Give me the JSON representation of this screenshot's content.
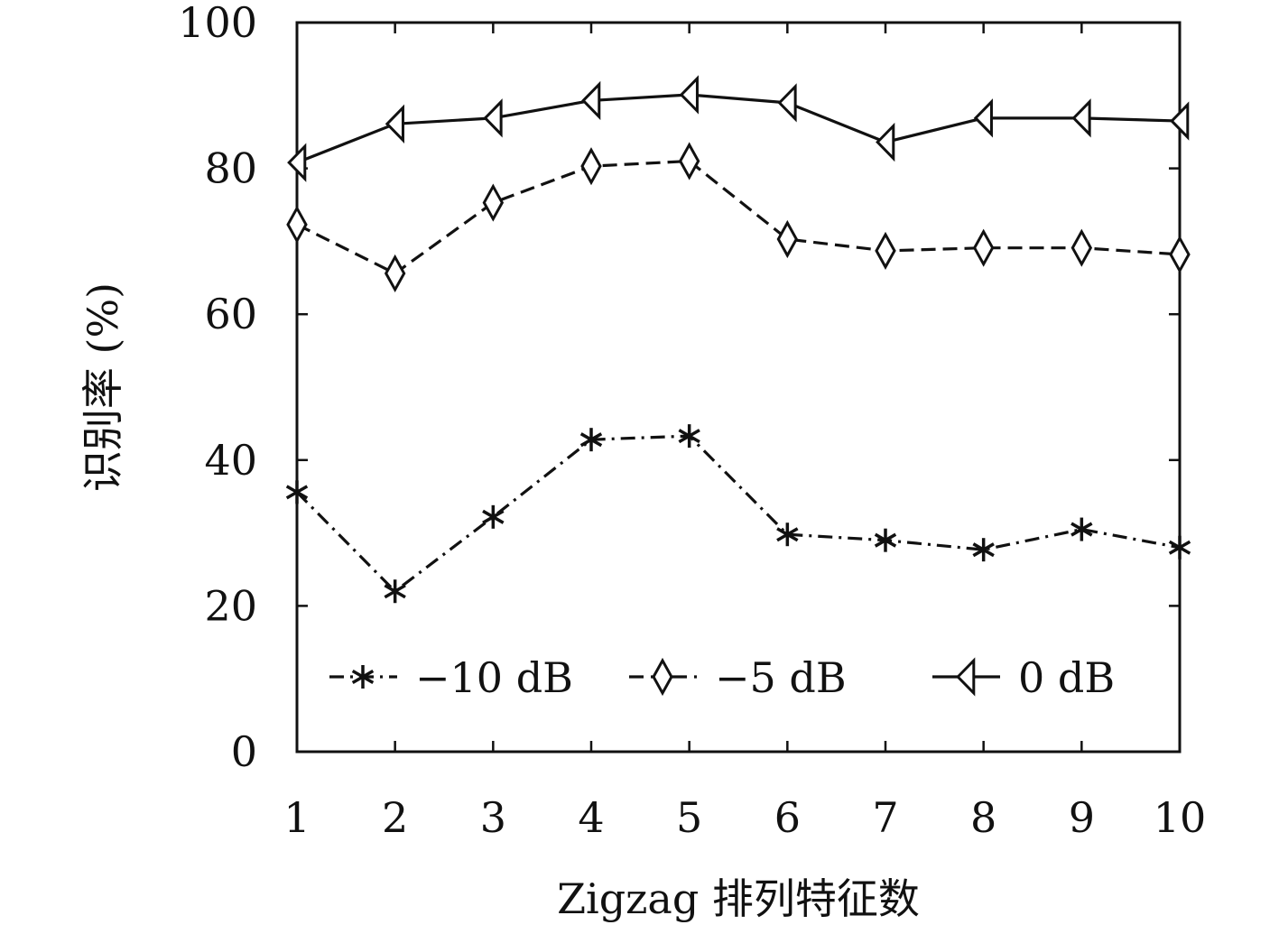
{
  "chart_data": {
    "type": "line",
    "title": "",
    "xlabel": "Zigzag 排列特征数",
    "ylabel": "识别率 (%)",
    "x": [
      1,
      2,
      3,
      4,
      5,
      6,
      7,
      8,
      9,
      10
    ],
    "x_tick_labels": [
      "1",
      "2",
      "3",
      "4",
      "5",
      "6",
      "7",
      "8",
      "9",
      "10"
    ],
    "y_ticks": [
      0,
      20,
      40,
      60,
      80,
      100
    ],
    "y_tick_labels": [
      "0",
      "20",
      "40",
      "60",
      "80",
      "100"
    ],
    "xlim": [
      1,
      10
    ],
    "ylim": [
      0,
      100
    ],
    "grid": false,
    "legend_position": "bottom",
    "series": [
      {
        "name": "−10 dB",
        "marker": "asterisk",
        "line_style": "dash-dot",
        "color": "#111111",
        "values": [
          35.6,
          22.0,
          32.2,
          42.8,
          43.3,
          29.8,
          29.0,
          27.7,
          30.5,
          28.0
        ]
      },
      {
        "name": "−5 dB",
        "marker": "diamond",
        "line_style": "dashed",
        "color": "#111111",
        "values": [
          72.3,
          65.6,
          75.3,
          80.3,
          81.0,
          70.3,
          68.7,
          69.1,
          69.1,
          68.2
        ]
      },
      {
        "name": "0 dB",
        "marker": "left-triangle",
        "line_style": "solid",
        "color": "#111111",
        "values": [
          80.8,
          86.1,
          86.9,
          89.3,
          90.1,
          89.0,
          83.6,
          86.9,
          86.9,
          86.5
        ]
      }
    ]
  }
}
